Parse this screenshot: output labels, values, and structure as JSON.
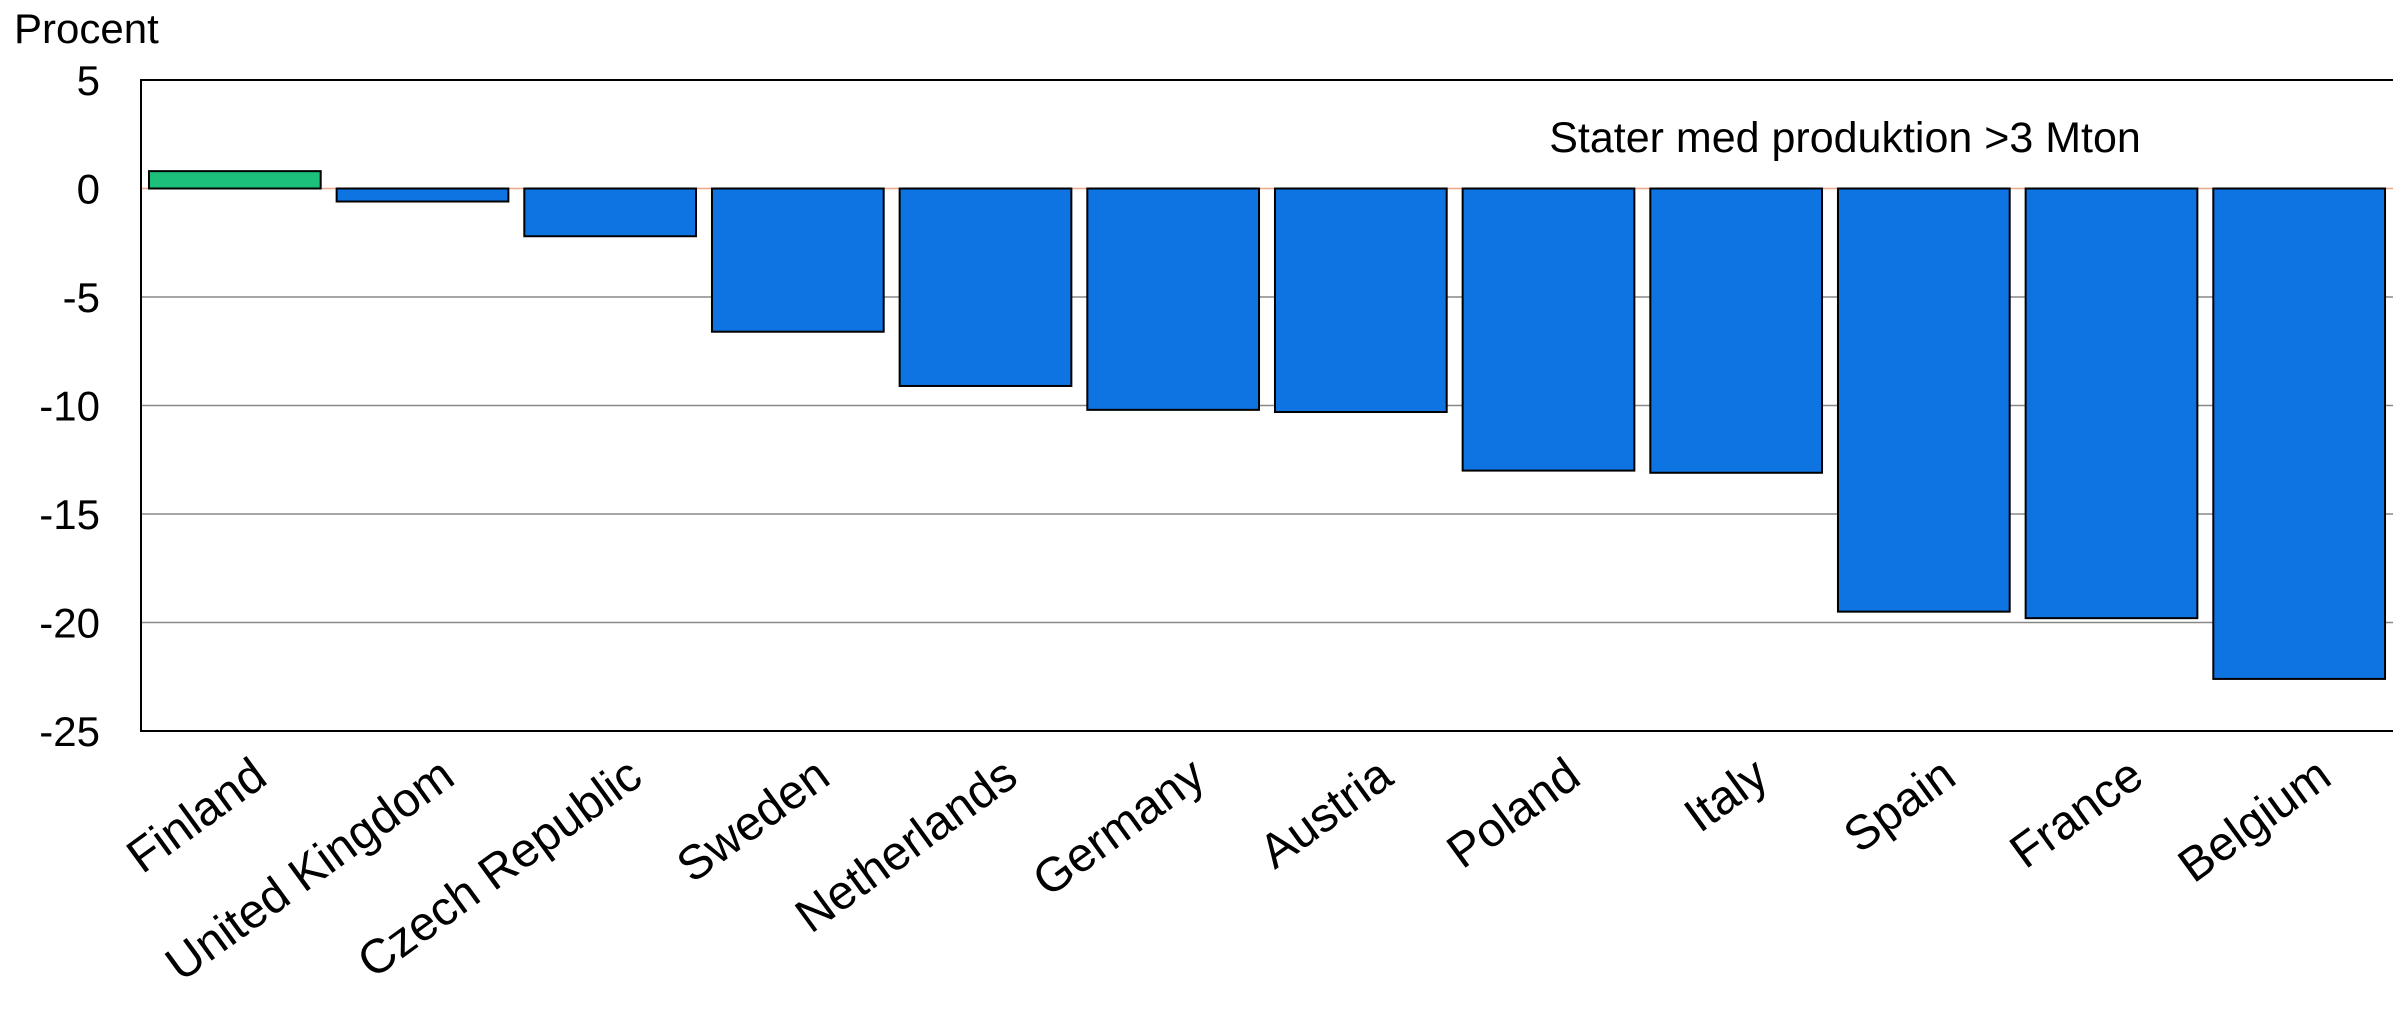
{
  "chart_data": {
    "type": "bar",
    "title": "",
    "ylabel": "Procent",
    "xlabel": "",
    "annotation": "Stater med produktion >3 Mton",
    "categories": [
      "Finland",
      "United Kingdom",
      "Czech Republic",
      "Sweden",
      "Netherlands",
      "Germany",
      "Austria",
      "Poland",
      "Italy",
      "Spain",
      "France",
      "Belgium"
    ],
    "values": [
      0.8,
      -0.6,
      -2.2,
      -6.6,
      -9.1,
      -10.2,
      -10.3,
      -13.0,
      -13.1,
      -19.5,
      -19.8,
      -22.6
    ],
    "ylim": [
      -25,
      5
    ],
    "yticks": [
      "5",
      "0",
      "-5",
      "-10",
      "-15",
      "-20",
      "-25"
    ],
    "grid": true,
    "colors": {
      "positive": "#1dc07a",
      "negative": "#0e74e2",
      "grid": "#888888",
      "zero_line": "#e8a88a",
      "bar_edge": "#000000"
    }
  }
}
